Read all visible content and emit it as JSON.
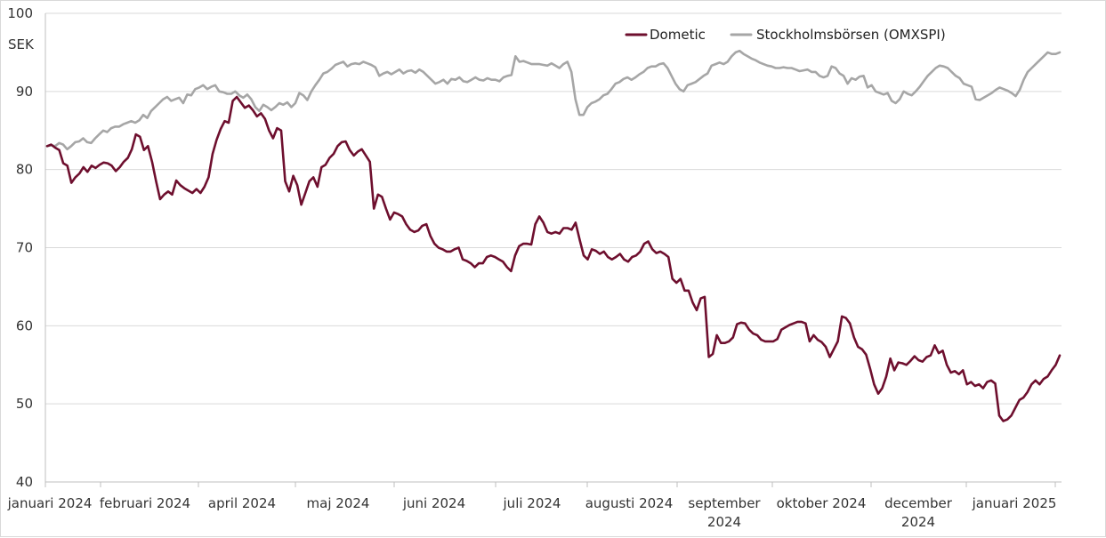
{
  "chart_data": {
    "type": "line",
    "ylabel": "SEK",
    "ylim": [
      40,
      100
    ],
    "yticks": [
      40,
      50,
      60,
      70,
      80,
      90,
      100
    ],
    "grid": true,
    "legend_placement": "top-right",
    "xtick_labels": [
      [
        "januari 2024"
      ],
      [
        "februari 2024"
      ],
      [
        "april 2024"
      ],
      [
        "maj 2024"
      ],
      [
        "juni 2024"
      ],
      [
        "juli 2024"
      ],
      [
        "augusti 2024"
      ],
      [
        "september",
        "2024"
      ],
      [
        "oktober 2024"
      ],
      [
        "december",
        "2024"
      ],
      [
        "januari 2025"
      ]
    ],
    "series": [
      {
        "name": "Dometic",
        "color": "#6e0f2e",
        "values": [
          83.0,
          83.2,
          82.8,
          82.5,
          80.8,
          80.5,
          78.3,
          79.0,
          79.5,
          80.3,
          79.7,
          80.5,
          80.2,
          80.6,
          80.9,
          80.8,
          80.5,
          79.8,
          80.3,
          81.0,
          81.5,
          82.6,
          84.5,
          84.2,
          82.5,
          83.0,
          81.0,
          78.5,
          76.2,
          76.8,
          77.2,
          76.8,
          78.6,
          78.0,
          77.6,
          77.3,
          77.0,
          77.5,
          77.0,
          77.8,
          79.0,
          82.0,
          83.8,
          85.2,
          86.2,
          86.0,
          88.8,
          89.3,
          88.6,
          87.9,
          88.2,
          87.6,
          86.8,
          87.2,
          86.5,
          85.0,
          84.0,
          85.3,
          85.0,
          78.5,
          77.2,
          79.2,
          78.0,
          75.5,
          77.0,
          78.5,
          79.0,
          77.8,
          80.3,
          80.6,
          81.5,
          82.0,
          83.0,
          83.5,
          83.6,
          82.5,
          81.8,
          82.3,
          82.6,
          81.8,
          81.0,
          75.0,
          76.8,
          76.5,
          75.0,
          73.6,
          74.5,
          74.3,
          74.0,
          73.0,
          72.3,
          72.0,
          72.2,
          72.8,
          73.0,
          71.5,
          70.5,
          70.0,
          69.8,
          69.5,
          69.5,
          69.8,
          70.0,
          68.5,
          68.3,
          68.0,
          67.5,
          68.0,
          68.0,
          68.8,
          69.0,
          68.8,
          68.5,
          68.2,
          67.5,
          67.0,
          69.0,
          70.2,
          70.5,
          70.5,
          70.4,
          73.0,
          74.0,
          73.2,
          72.0,
          71.8,
          72.0,
          71.8,
          72.5,
          72.5,
          72.3,
          73.2,
          71.0,
          69.0,
          68.5,
          69.8,
          69.6,
          69.2,
          69.5,
          68.8,
          68.5,
          68.8,
          69.2,
          68.5,
          68.2,
          68.8,
          69.0,
          69.5,
          70.5,
          70.8,
          69.8,
          69.3,
          69.5,
          69.2,
          68.8,
          66.0,
          65.5,
          66.0,
          64.5,
          64.5,
          63.0,
          62.0,
          63.5,
          63.7,
          56.0,
          56.4,
          58.8,
          57.8,
          57.8,
          58.0,
          58.5,
          60.2,
          60.4,
          60.3,
          59.5,
          59.0,
          58.8,
          58.2,
          58.0,
          58.0,
          58.0,
          58.3,
          59.5,
          59.8,
          60.1,
          60.3,
          60.5,
          60.5,
          60.3,
          58.0,
          58.8,
          58.2,
          57.9,
          57.3,
          56.0,
          57.0,
          58.0,
          61.2,
          61.0,
          60.3,
          58.5,
          57.3,
          57.0,
          56.3,
          54.5,
          52.5,
          51.3,
          52.0,
          53.5,
          55.8,
          54.3,
          55.3,
          55.2,
          55.0,
          55.5,
          56.1,
          55.6,
          55.4,
          56.0,
          56.2,
          57.5,
          56.5,
          56.8,
          55.0,
          54.0,
          54.2,
          53.8,
          54.3,
          52.5,
          52.8,
          52.3,
          52.5,
          52.0,
          52.8,
          53.0,
          52.6,
          48.5,
          47.8,
          48.0,
          48.5,
          49.5,
          50.5,
          50.8,
          51.5,
          52.5,
          53.0,
          52.5,
          53.2,
          53.5,
          54.3,
          55.0,
          56.2
        ]
      },
      {
        "name": "Stockholmsbörsen (OMXSPI)",
        "color": "#a6a6a6",
        "values": [
          83.0,
          83.1,
          83.0,
          83.4,
          83.2,
          82.6,
          83.0,
          83.5,
          83.6,
          84.0,
          83.5,
          83.4,
          84.0,
          84.5,
          85.0,
          84.8,
          85.3,
          85.5,
          85.5,
          85.8,
          86.0,
          86.2,
          86.0,
          86.3,
          87.0,
          86.6,
          87.5,
          88.0,
          88.5,
          89.0,
          89.3,
          88.8,
          89.0,
          89.2,
          88.5,
          89.6,
          89.5,
          90.3,
          90.5,
          90.8,
          90.3,
          90.6,
          90.8,
          90.0,
          89.9,
          89.7,
          89.7,
          90.0,
          89.5,
          89.2,
          89.6,
          89.0,
          88.0,
          87.5,
          88.3,
          88.0,
          87.6,
          88.0,
          88.5,
          88.3,
          88.6,
          88.0,
          88.5,
          89.8,
          89.5,
          88.9,
          90.0,
          90.8,
          91.5,
          92.3,
          92.5,
          92.9,
          93.4,
          93.6,
          93.8,
          93.2,
          93.5,
          93.6,
          93.5,
          93.8,
          93.6,
          93.4,
          93.1,
          92.0,
          92.3,
          92.5,
          92.2,
          92.5,
          92.8,
          92.3,
          92.6,
          92.7,
          92.4,
          92.8,
          92.5,
          92.0,
          91.5,
          91.0,
          91.2,
          91.5,
          91.0,
          91.6,
          91.5,
          91.8,
          91.3,
          91.2,
          91.5,
          91.8,
          91.5,
          91.4,
          91.7,
          91.5,
          91.5,
          91.3,
          91.8,
          92.0,
          92.1,
          94.5,
          93.8,
          93.9,
          93.7,
          93.5,
          93.5,
          93.5,
          93.4,
          93.3,
          93.6,
          93.3,
          93.0,
          93.5,
          93.8,
          92.5,
          89.0,
          87.0,
          87.0,
          88.0,
          88.5,
          88.7,
          89.0,
          89.5,
          89.7,
          90.3,
          91.0,
          91.2,
          91.6,
          91.8,
          91.5,
          91.8,
          92.2,
          92.5,
          93.0,
          93.2,
          93.2,
          93.5,
          93.6,
          93.0,
          92.0,
          91.0,
          90.3,
          90.0,
          90.8,
          91.0,
          91.2,
          91.6,
          92.0,
          92.3,
          93.3,
          93.5,
          93.7,
          93.5,
          93.8,
          94.5,
          95.0,
          95.2,
          94.8,
          94.5,
          94.2,
          94.0,
          93.7,
          93.5,
          93.3,
          93.2,
          93.0,
          93.0,
          93.1,
          93.0,
          93.0,
          92.8,
          92.6,
          92.7,
          92.8,
          92.5,
          92.5,
          92.0,
          91.8,
          92.0,
          93.2,
          93.0,
          92.3,
          92.0,
          91.0,
          91.7,
          91.5,
          91.9,
          92.0,
          90.5,
          90.8,
          90.0,
          89.8,
          89.6,
          89.8,
          88.8,
          88.5,
          89.0,
          90.0,
          89.7,
          89.5,
          90.0,
          90.6,
          91.3,
          92.0,
          92.5,
          93.0,
          93.3,
          93.2,
          93.0,
          92.5,
          92.0,
          91.7,
          91.0,
          90.8,
          90.6,
          89.0,
          88.9,
          89.2,
          89.5,
          89.8,
          90.2,
          90.5,
          90.3,
          90.1,
          89.8,
          89.4,
          90.2,
          91.5,
          92.5,
          93.0,
          93.5,
          94.0,
          94.5,
          95.0,
          94.8,
          94.8,
          95.0
        ]
      }
    ]
  }
}
